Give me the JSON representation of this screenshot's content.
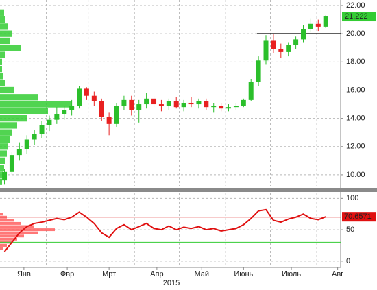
{
  "chart_data": [
    {
      "type": "candlestick",
      "x": [
        3,
        8,
        13,
        18,
        23,
        28,
        33,
        38,
        43,
        48,
        53,
        58,
        63,
        68,
        73,
        78,
        83,
        88,
        93,
        98,
        103,
        108,
        113,
        118,
        123,
        128,
        133,
        138,
        143,
        148,
        153,
        158,
        163,
        168,
        173,
        178,
        183,
        188,
        193,
        198,
        203,
        208,
        213,
        218
      ],
      "open": [
        9.6,
        10.2,
        11.4,
        11.8,
        12.5,
        12.9,
        13.5,
        13.9,
        14.3,
        14.6,
        14.9,
        16.1,
        15.6,
        15.2,
        14.1,
        13.6,
        14.9,
        15.3,
        14.6,
        15.0,
        15.4,
        15.0,
        14.9,
        15.2,
        14.8,
        15.1,
        15.0,
        15.2,
        14.8,
        14.9,
        14.7,
        14.8,
        14.9,
        15.3,
        16.6,
        18.1,
        19.5,
        18.9,
        18.7,
        19.2,
        19.6,
        20.3,
        20.7,
        20.5
      ],
      "high": [
        10.4,
        11.6,
        12.3,
        12.8,
        13.2,
        13.8,
        14.2,
        14.8,
        14.9,
        15.3,
        16.3,
        16.2,
        15.9,
        15.4,
        14.4,
        15.1,
        15.6,
        15.6,
        15.3,
        15.8,
        15.6,
        15.3,
        15.4,
        15.5,
        15.3,
        15.5,
        15.4,
        15.4,
        15.1,
        15.1,
        15.0,
        15.1,
        15.4,
        16.8,
        18.4,
        19.9,
        20.0,
        19.3,
        19.4,
        19.8,
        20.6,
        21.1,
        21.0,
        21.3
      ],
      "low": [
        9.3,
        10.0,
        11.0,
        11.5,
        12.1,
        12.6,
        13.1,
        13.6,
        13.9,
        14.2,
        14.7,
        15.3,
        14.9,
        13.8,
        12.8,
        13.4,
        14.6,
        14.2,
        13.7,
        14.7,
        14.8,
        14.5,
        14.6,
        14.7,
        14.5,
        14.8,
        14.7,
        14.6,
        14.4,
        14.5,
        14.5,
        14.6,
        14.8,
        15.2,
        16.3,
        17.8,
        18.6,
        18.3,
        18.4,
        18.9,
        19.4,
        20.1,
        20.2,
        20.4
      ],
      "close": [
        10.2,
        11.4,
        11.8,
        12.5,
        12.9,
        13.5,
        13.9,
        14.3,
        14.6,
        14.9,
        16.1,
        15.6,
        15.2,
        14.1,
        13.6,
        14.9,
        15.3,
        14.6,
        15.0,
        15.4,
        15.0,
        14.9,
        15.2,
        14.8,
        15.1,
        15.0,
        15.2,
        14.8,
        14.9,
        14.7,
        14.8,
        14.9,
        15.3,
        16.6,
        18.1,
        19.5,
        18.9,
        18.7,
        19.2,
        19.6,
        20.3,
        20.7,
        20.5,
        21.222
      ],
      "up_color": "#2bbf2b",
      "down_color": "#e82020",
      "last_price": 21.222,
      "last_color": "#33cc33",
      "hline": {
        "value": 20,
        "from_x": 172
      },
      "volume_profile": {
        "color": "#33cc33",
        "levels": [
          9.5,
          10,
          10.5,
          11,
          11.5,
          12,
          12.5,
          13,
          13.5,
          14,
          14.5,
          15,
          15.5,
          16,
          16.5,
          17,
          17.5,
          18,
          18.5,
          19,
          19.5,
          20,
          20.5,
          21,
          21.5
        ],
        "values": [
          3,
          5,
          6,
          8,
          10,
          12,
          14,
          18,
          25,
          40,
          70,
          105,
          55,
          20,
          8,
          4,
          3,
          3,
          8,
          30,
          15,
          18,
          12,
          8,
          6
        ]
      },
      "xlim": [
        0,
        228
      ],
      "ylim": [
        9.17,
        22.39
      ],
      "yticks": [
        {
          "value": 10,
          "label": "10.00"
        },
        {
          "value": 12,
          "label": "12.00"
        },
        {
          "value": 14,
          "label": "14.00"
        },
        {
          "value": 16,
          "label": "16.00"
        },
        {
          "value": 18,
          "label": "18.00"
        },
        {
          "value": 20,
          "label": "20.00"
        },
        {
          "value": 22,
          "label": "22.00"
        }
      ],
      "grid": true
    },
    {
      "type": "line",
      "x": [
        3,
        8,
        13,
        18,
        23,
        28,
        33,
        38,
        43,
        48,
        53,
        58,
        63,
        68,
        73,
        78,
        83,
        88,
        93,
        98,
        103,
        108,
        113,
        118,
        123,
        128,
        133,
        138,
        143,
        148,
        153,
        158,
        163,
        168,
        173,
        178,
        183,
        188,
        193,
        198,
        203,
        208,
        213,
        218
      ],
      "values": [
        15,
        30,
        45,
        55,
        60,
        62,
        65,
        68,
        66,
        70,
        78,
        70,
        60,
        45,
        38,
        52,
        58,
        50,
        55,
        60,
        52,
        50,
        56,
        50,
        54,
        52,
        55,
        50,
        52,
        48,
        50,
        52,
        58,
        68,
        80,
        82,
        65,
        62,
        67,
        70,
        75,
        68,
        66,
        70.6571
      ],
      "color": "#e01010",
      "last_value": 70.6571,
      "levels": [
        {
          "value": 70,
          "color": "#e03030"
        },
        {
          "value": 30,
          "color": "#33cc33"
        }
      ],
      "profile": {
        "color": "#ff5555",
        "levels": [
          20,
          25,
          30,
          35,
          40,
          45,
          50,
          55,
          60,
          65,
          70,
          75
        ],
        "values": [
          5,
          10,
          18,
          25,
          35,
          55,
          80,
          50,
          30,
          20,
          10,
          5
        ]
      },
      "xlim": [
        0,
        228
      ],
      "ylim": [
        -10,
        108
      ],
      "yticks": [
        0,
        50,
        100
      ],
      "xgrid": [
        31,
        59,
        90,
        120,
        151,
        181,
        212
      ],
      "xticks": [
        {
          "value": 16,
          "label": "Янв"
        },
        {
          "value": 45,
          "label": "Фвр"
        },
        {
          "value": 73,
          "label": "Мрт"
        },
        {
          "value": 105,
          "label": "Апр"
        },
        {
          "value": 135,
          "label": "Май"
        },
        {
          "value": 163,
          "label": "Июнь"
        },
        {
          "value": 195,
          "label": "Июль"
        },
        {
          "value": 226,
          "label": "Авг"
        }
      ],
      "xlabel": "2015",
      "grid": true
    }
  ]
}
